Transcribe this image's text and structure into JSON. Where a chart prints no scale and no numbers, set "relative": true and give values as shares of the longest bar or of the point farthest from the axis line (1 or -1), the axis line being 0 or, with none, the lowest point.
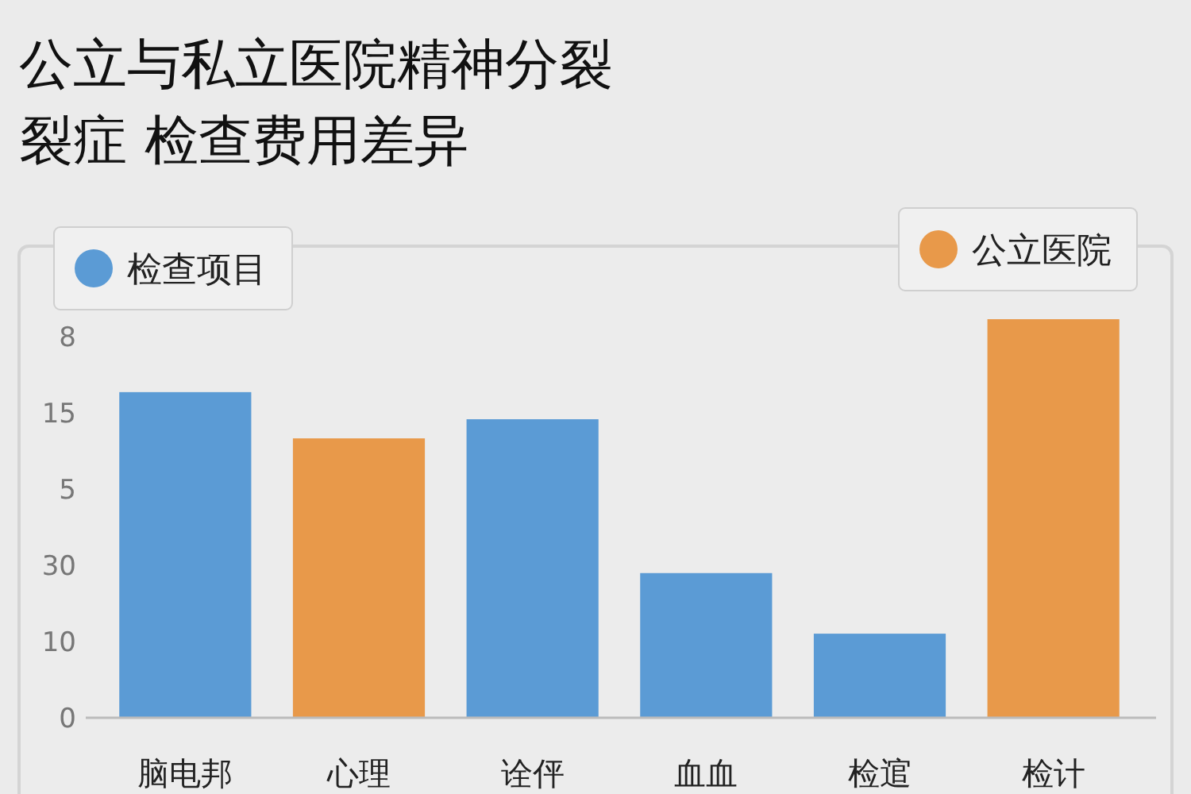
{
  "chart_data": {
    "type": "bar",
    "title": "公立与私立医院精神分裂裂症  检查费用差异",
    "relative": true,
    "categories": [
      "脑电邦",
      "心理",
      "诠伻",
      "血血",
      "检逭",
      "检计"
    ],
    "series": [
      {
        "name": "检查项目",
        "color": "#5b9bd5",
        "values": [
          0.817,
          null,
          0.749,
          0.363,
          0.211,
          null
        ]
      },
      {
        "name": "公立医院",
        "color": "#e8994a",
        "values": [
          null,
          0.701,
          null,
          null,
          null,
          1
        ]
      }
    ],
    "annotations": [
      "8",
      "15",
      "5",
      "30",
      "10",
      "0"
    ],
    "legend": "top"
  }
}
